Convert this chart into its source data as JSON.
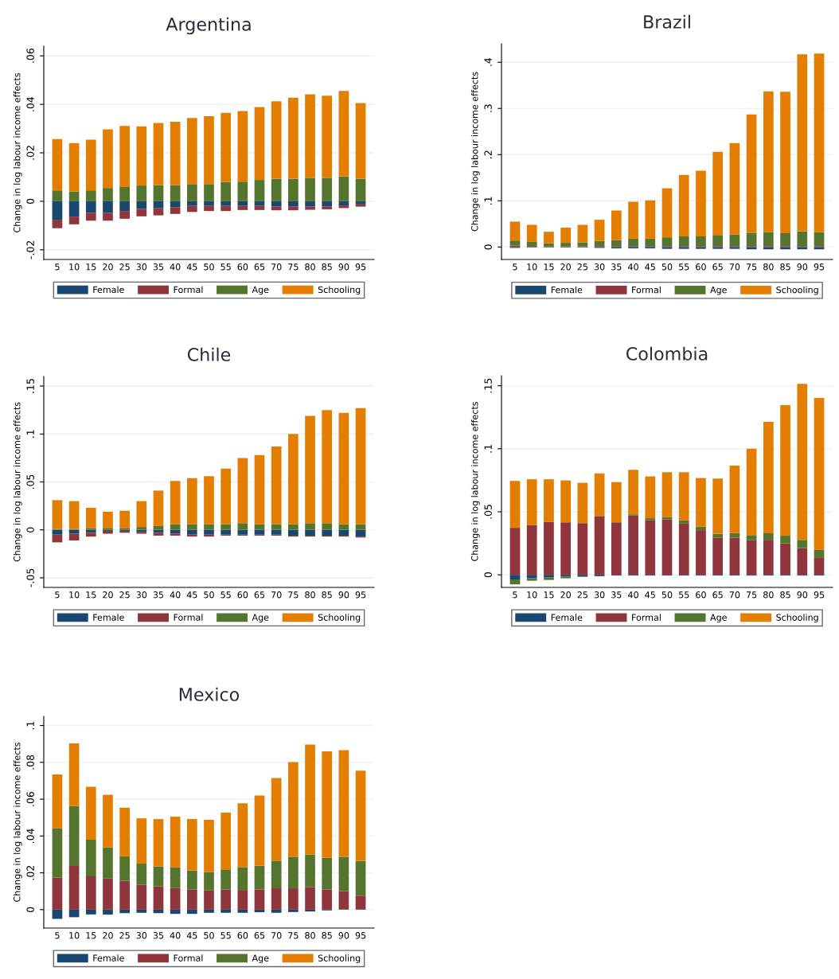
{
  "chart_data": [
    {
      "type": "bar",
      "stacked": true,
      "title": "Argentina",
      "ylabel": "Change in log labour income effects",
      "legend": "bottom",
      "grid": "y",
      "categories": [
        "5",
        "10",
        "15",
        "20",
        "25",
        "30",
        "35",
        "40",
        "45",
        "50",
        "55",
        "60",
        "65",
        "70",
        "75",
        "80",
        "85",
        "90",
        "95"
      ],
      "ylim": [
        -0.024,
        0.064
      ],
      "yticks": [
        {
          "value": -0.02,
          "label": "-.02"
        },
        0,
        {
          "value": 0.02,
          "label": ".02"
        },
        {
          "value": 0.04,
          "label": ".04"
        },
        {
          "value": 0.06,
          "label": ".06"
        }
      ],
      "series": [
        {
          "name": "Female",
          "color": "#1a476f",
          "values": [
            -0.0076,
            -0.0063,
            -0.0048,
            -0.0048,
            -0.004,
            -0.0032,
            -0.0029,
            -0.0024,
            -0.0019,
            -0.0019,
            -0.0019,
            -0.0019,
            -0.0019,
            -0.0022,
            -0.0022,
            -0.0022,
            -0.0022,
            -0.0017,
            -0.0013
          ]
        },
        {
          "name": "Formal",
          "color": "#90353b",
          "values": [
            -0.0035,
            -0.0032,
            -0.0032,
            -0.0032,
            -0.0032,
            -0.003,
            -0.0029,
            -0.0028,
            -0.0025,
            -0.0021,
            -0.0021,
            -0.0017,
            -0.0017,
            -0.0015,
            -0.0015,
            -0.0013,
            -0.0011,
            -0.0011,
            -0.0009
          ]
        },
        {
          "name": "Age",
          "color": "#55752f",
          "values": [
            0.0045,
            0.004,
            0.0045,
            0.0055,
            0.0059,
            0.0065,
            0.0067,
            0.0067,
            0.0071,
            0.0071,
            0.0079,
            0.0081,
            0.0088,
            0.0093,
            0.0093,
            0.0097,
            0.0097,
            0.0102,
            0.0093
          ]
        },
        {
          "name": "Schooling",
          "color": "#e37e00",
          "values": [
            0.0212,
            0.02,
            0.0209,
            0.0242,
            0.0252,
            0.0244,
            0.0256,
            0.0261,
            0.0273,
            0.028,
            0.0286,
            0.0291,
            0.0301,
            0.032,
            0.0334,
            0.0344,
            0.0339,
            0.0353,
            0.0312
          ]
        }
      ]
    },
    {
      "type": "bar",
      "stacked": true,
      "title": "Brazil",
      "ylabel": "Change in log labour income effects",
      "legend": "bottom",
      "grid": "y",
      "categories": [
        "5",
        "10",
        "15",
        "20",
        "25",
        "30",
        "35",
        "40",
        "45",
        "50",
        "55",
        "60",
        "65",
        "70",
        "75",
        "80",
        "85",
        "90",
        "95"
      ],
      "ylim": [
        -0.027,
        0.44
      ],
      "yticks": [
        0,
        {
          "value": 0.1,
          "label": ".1"
        },
        {
          "value": 0.2,
          "label": ".2"
        },
        {
          "value": 0.3,
          "label": ".3"
        },
        {
          "value": 0.4,
          "label": ".4"
        }
      ],
      "series": [
        {
          "name": "Female",
          "color": "#1a476f",
          "values": [
            -0.002,
            -0.001,
            -0.001,
            -0.001,
            -0.001,
            -0.002,
            -0.003,
            -0.003,
            -0.003,
            -0.004,
            -0.004,
            -0.004,
            -0.004,
            -0.004,
            -0.005,
            -0.005,
            -0.005,
            -0.005,
            -0.005
          ]
        },
        {
          "name": "Formal",
          "color": "#90353b",
          "values": [
            0.003,
            0.002,
            0.001,
            0.001,
            0.001,
            0.002,
            0.002,
            0.002,
            0.002,
            0.002,
            0.002,
            0.002,
            0.002,
            0.002,
            0.002,
            0.002,
            0.002,
            0.002,
            0.002
          ]
        },
        {
          "name": "Age",
          "color": "#55752f",
          "values": [
            0.011,
            0.01,
            0.007,
            0.008,
            0.009,
            0.011,
            0.013,
            0.016,
            0.016,
            0.019,
            0.021,
            0.021,
            0.024,
            0.025,
            0.029,
            0.03,
            0.028,
            0.032,
            0.03
          ]
        },
        {
          "name": "Schooling",
          "color": "#e37e00",
          "values": [
            0.041,
            0.036,
            0.025,
            0.033,
            0.038,
            0.046,
            0.064,
            0.08,
            0.083,
            0.106,
            0.133,
            0.142,
            0.18,
            0.198,
            0.256,
            0.305,
            0.306,
            0.383,
            0.387
          ]
        }
      ]
    },
    {
      "type": "bar",
      "stacked": true,
      "title": "Chile",
      "ylabel": "Change in log labour income effects",
      "legend": "bottom",
      "grid": "y",
      "categories": [
        "5",
        "10",
        "15",
        "20",
        "25",
        "30",
        "35",
        "40",
        "45",
        "50",
        "55",
        "60",
        "65",
        "70",
        "75",
        "80",
        "85",
        "90",
        "95"
      ],
      "ylim": [
        -0.06,
        0.16
      ],
      "yticks": [
        {
          "value": -0.05,
          "label": "-.05"
        },
        0,
        {
          "value": 0.05,
          "label": ".05"
        },
        {
          "value": 0.1,
          "label": ".1"
        },
        {
          "value": 0.15,
          "label": ".15"
        }
      ],
      "series": [
        {
          "name": "Female",
          "color": "#1a476f",
          "values": [
            -0.005,
            -0.004,
            -0.003,
            -0.001,
            -0.001,
            -0.002,
            -0.003,
            -0.004,
            -0.005,
            -0.005,
            -0.005,
            -0.005,
            -0.005,
            -0.005,
            -0.006,
            -0.006,
            -0.006,
            -0.006,
            -0.007
          ]
        },
        {
          "name": "Formal",
          "color": "#90353b",
          "values": [
            -0.008,
            -0.007,
            -0.004,
            -0.003,
            -0.002,
            -0.002,
            -0.003,
            -0.002,
            -0.002,
            -0.002,
            -0.001,
            -0.001,
            -0.001,
            -0.001,
            -0.001,
            -0.001,
            -0.001,
            -0.001,
            -0.001
          ]
        },
        {
          "name": "Age",
          "color": "#55752f",
          "values": [
            0.001,
            0.001,
            0.002,
            0.002,
            0.002,
            0.003,
            0.004,
            0.006,
            0.006,
            0.006,
            0.006,
            0.007,
            0.006,
            0.006,
            0.006,
            0.007,
            0.007,
            0.006,
            0.006
          ]
        },
        {
          "name": "Schooling",
          "color": "#e37e00",
          "values": [
            0.03,
            0.029,
            0.021,
            0.017,
            0.018,
            0.027,
            0.037,
            0.045,
            0.048,
            0.05,
            0.058,
            0.068,
            0.072,
            0.081,
            0.094,
            0.112,
            0.118,
            0.116,
            0.121
          ]
        }
      ]
    },
    {
      "type": "bar",
      "stacked": true,
      "title": "Colombia",
      "ylabel": "Change in log labour income effects",
      "legend": "bottom",
      "grid": "y",
      "categories": [
        "5",
        "10",
        "15",
        "20",
        "25",
        "30",
        "35",
        "40",
        "45",
        "50",
        "55",
        "60",
        "65",
        "70",
        "75",
        "80",
        "85",
        "90",
        "95"
      ],
      "ylim": [
        -0.01,
        0.158
      ],
      "yticks": [
        0,
        {
          "value": 0.05,
          "label": ".05"
        },
        {
          "value": 0.1,
          "label": ".1"
        },
        {
          "value": 0.15,
          "label": ".15"
        }
      ],
      "series": [
        {
          "name": "Female",
          "color": "#1a476f",
          "values": [
            -0.0037,
            -0.0028,
            -0.0022,
            -0.0015,
            -0.0013,
            -0.0011,
            -0.0006,
            -0.0006,
            -0.0006,
            -0.0006,
            -0.0006,
            -0.0006,
            -0.0006,
            -0.0006,
            -0.0006,
            -0.0006,
            -0.0006,
            -0.0006,
            -0.0006
          ]
        },
        {
          "name": "Formal",
          "color": "#90353b",
          "values": [
            0.0373,
            0.0395,
            0.0421,
            0.0417,
            0.041,
            0.0464,
            0.0414,
            0.0471,
            0.0432,
            0.044,
            0.0406,
            0.0354,
            0.0294,
            0.0294,
            0.0274,
            0.0278,
            0.025,
            0.0212,
            0.0134
          ]
        },
        {
          "name": "Age",
          "color": "#55752f",
          "values": [
            -0.0039,
            -0.0019,
            -0.0019,
            -0.0013,
            -0.0004,
            0.0004,
            0.0004,
            0.0009,
            0.0017,
            0.0017,
            0.0026,
            0.0028,
            0.0032,
            0.0037,
            0.0041,
            0.0052,
            0.006,
            0.0065,
            0.0065
          ]
        },
        {
          "name": "Schooling",
          "color": "#e37e00",
          "values": [
            0.0372,
            0.0363,
            0.0337,
            0.0332,
            0.032,
            0.0337,
            0.0318,
            0.0353,
            0.0332,
            0.0357,
            0.0382,
            0.0386,
            0.0438,
            0.0535,
            0.0686,
            0.0883,
            0.1037,
            0.1238,
            0.1204
          ]
        }
      ]
    },
    {
      "type": "bar",
      "stacked": true,
      "title": "Mexico",
      "ylabel": "Change in log labour income effects",
      "legend": "bottom",
      "grid": "y",
      "categories": [
        "5",
        "10",
        "15",
        "20",
        "25",
        "30",
        "35",
        "40",
        "45",
        "50",
        "55",
        "60",
        "65",
        "70",
        "75",
        "80",
        "85",
        "90",
        "95"
      ],
      "ylim": [
        -0.01,
        0.105
      ],
      "yticks": [
        0,
        {
          "value": 0.02,
          "label": ".02"
        },
        {
          "value": 0.04,
          "label": ".04"
        },
        {
          "value": 0.06,
          "label": ".06"
        },
        {
          "value": 0.08,
          "label": ".08"
        },
        {
          "value": 0.1,
          "label": ".1"
        }
      ],
      "series": [
        {
          "name": "Female",
          "color": "#1a476f",
          "values": [
            -0.005,
            -0.0041,
            -0.0026,
            -0.0027,
            -0.0019,
            -0.0017,
            -0.0019,
            -0.0023,
            -0.0023,
            -0.0017,
            -0.0017,
            -0.0017,
            -0.0014,
            -0.0017,
            -0.0013,
            -0.001,
            -0.0004,
            0.0003,
            0
          ]
        },
        {
          "name": "Formal",
          "color": "#90353b",
          "values": [
            0.0174,
            0.0241,
            0.0181,
            0.0169,
            0.0157,
            0.0136,
            0.0126,
            0.0119,
            0.011,
            0.0104,
            0.011,
            0.0107,
            0.011,
            0.0116,
            0.0116,
            0.0123,
            0.011,
            0.0097,
            0.0076
          ]
        },
        {
          "name": "Age",
          "color": "#55752f",
          "values": [
            0.0269,
            0.0323,
            0.0199,
            0.0169,
            0.0133,
            0.0114,
            0.0109,
            0.011,
            0.0103,
            0.01,
            0.0106,
            0.0124,
            0.0129,
            0.015,
            0.0171,
            0.0176,
            0.0171,
            0.0187,
            0.0189
          ]
        },
        {
          "name": "Schooling",
          "color": "#e37e00",
          "values": [
            0.0291,
            0.0339,
            0.0287,
            0.0286,
            0.0264,
            0.0246,
            0.0257,
            0.0276,
            0.0279,
            0.0284,
            0.0311,
            0.0347,
            0.0381,
            0.0449,
            0.0514,
            0.0597,
            0.0579,
            0.0579,
            0.049
          ]
        }
      ]
    }
  ]
}
